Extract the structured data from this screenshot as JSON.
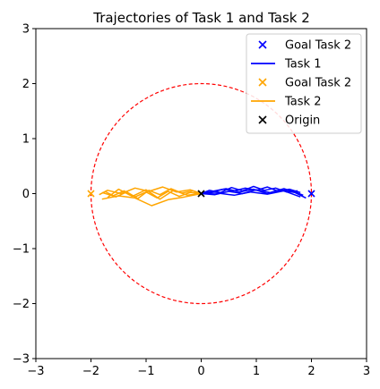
{
  "chart_data": {
    "type": "line",
    "title": "Trajectories of Task 1 and Task 2",
    "xlabel": "",
    "ylabel": "",
    "xlim": [
      -3,
      3
    ],
    "ylim": [
      -3,
      3
    ],
    "x_ticks": [
      -3,
      -2,
      -1,
      0,
      1,
      2,
      3
    ],
    "y_ticks": [
      -3,
      -2,
      -1,
      0,
      1,
      2,
      3
    ],
    "grid": false,
    "legend_position": "top-right",
    "circle": {
      "center": [
        0,
        0
      ],
      "radius": 2,
      "color": "#ff0000",
      "style": "dashed"
    },
    "series": [
      {
        "name": "Task 1",
        "color": "#0000ff",
        "trajectories": [
          {
            "x": [
              0,
              0.2,
              0.4,
              0.6,
              0.8,
              1.0,
              1.2,
              1.4,
              1.6,
              1.8
            ],
            "y": [
              0,
              0.03,
              0.08,
              0.05,
              0.1,
              0.06,
              0.12,
              0.04,
              0.08,
              0.02
            ]
          },
          {
            "x": [
              0,
              0.25,
              0.5,
              0.75,
              1.0,
              1.25,
              1.5,
              1.75,
              1.85
            ],
            "y": [
              0,
              -0.02,
              0.04,
              0.0,
              0.07,
              0.02,
              0.09,
              0.01,
              -0.03
            ]
          },
          {
            "x": [
              0,
              0.15,
              0.35,
              0.55,
              0.75,
              0.95,
              1.15,
              1.35,
              1.55,
              1.75
            ],
            "y": [
              0,
              0.06,
              0.02,
              0.11,
              0.05,
              0.13,
              0.06,
              0.1,
              0.03,
              0.05
            ]
          },
          {
            "x": [
              0,
              0.3,
              0.6,
              0.9,
              1.2,
              1.5,
              1.8
            ],
            "y": [
              0,
              0.01,
              -0.03,
              0.03,
              -0.01,
              0.05,
              -0.06
            ]
          },
          {
            "x": [
              0,
              0.2,
              0.45,
              0.7,
              0.95,
              1.2,
              1.45,
              1.7,
              1.9
            ],
            "y": [
              0,
              0.04,
              0.09,
              0.03,
              0.08,
              0.0,
              0.06,
              0.02,
              -0.08
            ]
          }
        ]
      },
      {
        "name": "Task 2",
        "color": "#ffa500",
        "trajectories": [
          {
            "x": [
              0,
              -0.2,
              -0.4,
              -0.6,
              -0.8,
              -1.0,
              -1.2,
              -1.4,
              -1.6,
              -1.8
            ],
            "y": [
              0,
              0.02,
              -0.05,
              0.04,
              -0.08,
              0.03,
              -0.06,
              0.05,
              -0.04,
              0.02
            ]
          },
          {
            "x": [
              0,
              -0.25,
              -0.5,
              -0.75,
              -1.0,
              -1.25,
              -1.5,
              -1.7
            ],
            "y": [
              0,
              -0.03,
              0.06,
              -0.1,
              0.07,
              -0.05,
              0.08,
              -0.07
            ]
          },
          {
            "x": [
              0,
              -0.15,
              -0.35,
              -0.55,
              -0.75,
              -0.95,
              -1.15,
              -1.35,
              -1.55,
              -1.75
            ],
            "y": [
              0,
              0.05,
              0.01,
              0.09,
              -0.02,
              0.06,
              -0.09,
              0.03,
              -0.06,
              0.04
            ]
          },
          {
            "x": [
              0,
              -0.3,
              -0.6,
              -0.9,
              -1.2,
              -1.5,
              -1.8
            ],
            "y": [
              0,
              -0.06,
              -0.11,
              -0.22,
              -0.08,
              -0.04,
              -0.1
            ]
          },
          {
            "x": [
              0,
              -0.2,
              -0.45,
              -0.7,
              -0.95,
              -1.2,
              -1.45,
              -1.7,
              -1.85
            ],
            "y": [
              0,
              0.07,
              0.03,
              0.12,
              0.04,
              0.1,
              0.0,
              0.06,
              -0.02
            ]
          }
        ]
      }
    ],
    "markers": [
      {
        "name": "Goal Task 2",
        "x": 2,
        "y": 0,
        "color": "#0000ff",
        "symbol": "x"
      },
      {
        "name": "Goal Task 2",
        "x": -2,
        "y": 0,
        "color": "#ffa500",
        "symbol": "x"
      },
      {
        "name": "Origin",
        "x": 0,
        "y": 0,
        "color": "#000000",
        "symbol": "x"
      }
    ],
    "legend": [
      {
        "label": "Goal Task 2",
        "kind": "marker",
        "color": "#0000ff"
      },
      {
        "label": "Task 1",
        "kind": "line",
        "color": "#0000ff"
      },
      {
        "label": "Goal Task 2",
        "kind": "marker",
        "color": "#ffa500"
      },
      {
        "label": "Task 2",
        "kind": "line",
        "color": "#ffa500"
      },
      {
        "label": "Origin",
        "kind": "marker",
        "color": "#000000"
      }
    ]
  }
}
